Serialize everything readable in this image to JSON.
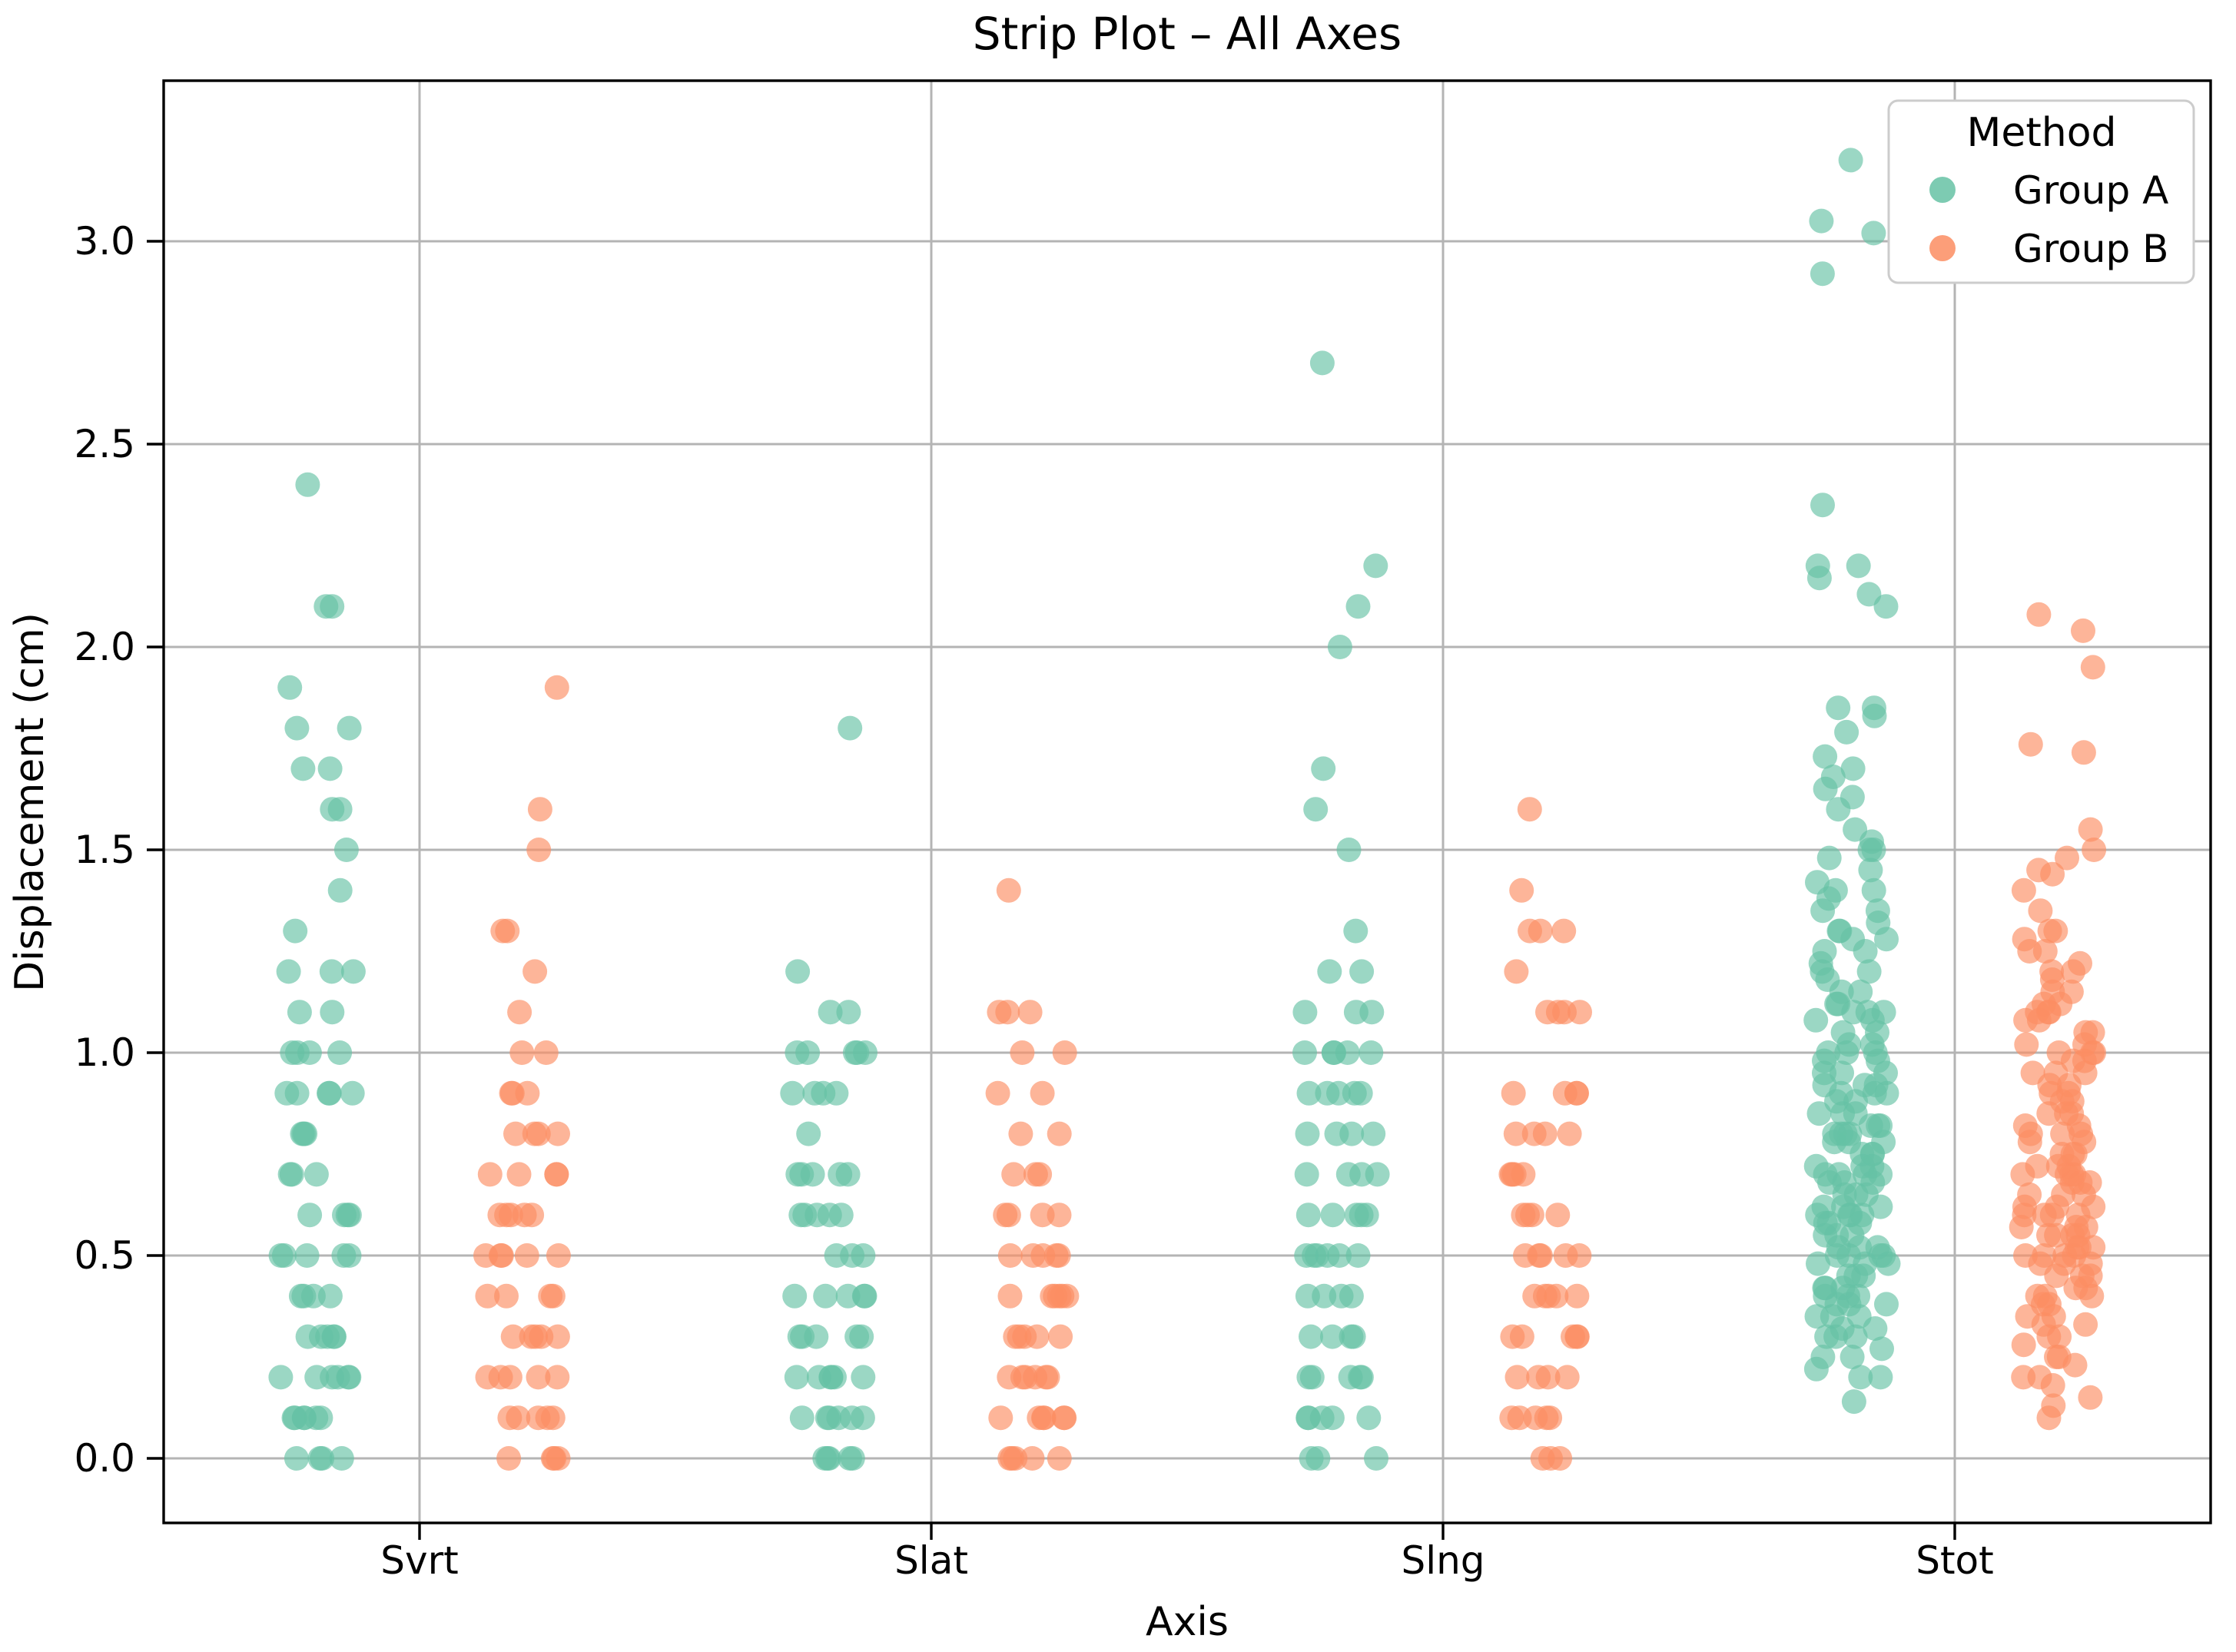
{
  "chart_data": {
    "type": "strip",
    "title": "Strip Plot – All Axes",
    "xlabel": "Axis",
    "ylabel": "Displacement (cm)",
    "categories": [
      "Svrt",
      "Slat",
      "Slng",
      "Stot"
    ],
    "ylim": [
      -0.16,
      3.4
    ],
    "yticks": [
      0.0,
      0.5,
      1.0,
      1.5,
      2.0,
      2.5,
      3.0
    ],
    "grid": true,
    "grid_color": "#b4b4b4",
    "marker_alpha": 0.65,
    "marker_radius_px": 16,
    "dodge_offset": 0.2,
    "jitter_halfwidth": 0.072,
    "legend": {
      "title": "Method",
      "position": "upper right",
      "entries": [
        {
          "label": "Group A",
          "color": "#66c2a5"
        },
        {
          "label": "Group B",
          "color": "#fc8d62"
        }
      ]
    },
    "series": [
      {
        "name": "Group A",
        "color": "#66c2a5",
        "offset": -0.2,
        "value_counts": {
          "Svrt": [
            [
              0.0,
              4
            ],
            [
              0.1,
              6
            ],
            [
              0.2,
              6
            ],
            [
              0.3,
              5
            ],
            [
              0.4,
              4
            ],
            [
              0.5,
              5
            ],
            [
              0.6,
              4
            ],
            [
              0.7,
              3
            ],
            [
              0.8,
              3
            ],
            [
              0.9,
              5
            ],
            [
              1.0,
              4
            ],
            [
              1.1,
              2
            ],
            [
              1.2,
              3
            ],
            [
              1.3,
              1
            ],
            [
              1.4,
              1
            ],
            [
              1.5,
              1
            ],
            [
              1.6,
              2
            ],
            [
              1.7,
              2
            ],
            [
              1.8,
              2
            ],
            [
              1.9,
              1
            ],
            [
              2.1,
              2
            ],
            [
              2.4,
              1
            ]
          ],
          "Slat": [
            [
              0.0,
              5
            ],
            [
              0.1,
              6
            ],
            [
              0.2,
              6
            ],
            [
              0.3,
              5
            ],
            [
              0.4,
              5
            ],
            [
              0.5,
              3
            ],
            [
              0.6,
              5
            ],
            [
              0.7,
              5
            ],
            [
              0.8,
              1
            ],
            [
              0.9,
              4
            ],
            [
              1.0,
              5
            ],
            [
              1.1,
              2
            ],
            [
              1.2,
              1
            ],
            [
              1.8,
              1
            ]
          ],
          "Slng": [
            [
              0.0,
              3
            ],
            [
              0.1,
              5
            ],
            [
              0.2,
              5
            ],
            [
              0.3,
              4
            ],
            [
              0.4,
              4
            ],
            [
              0.5,
              6
            ],
            [
              0.6,
              5
            ],
            [
              0.7,
              4
            ],
            [
              0.8,
              4
            ],
            [
              0.9,
              5
            ],
            [
              1.0,
              5
            ],
            [
              1.1,
              3
            ],
            [
              1.2,
              2
            ],
            [
              1.3,
              1
            ],
            [
              1.5,
              1
            ],
            [
              1.6,
              1
            ],
            [
              1.7,
              1
            ],
            [
              2.0,
              1
            ],
            [
              2.1,
              1
            ],
            [
              2.2,
              1
            ],
            [
              2.7,
              1
            ]
          ],
          "Stot": [
            [
              0.14,
              1
            ],
            [
              0.2,
              2
            ],
            [
              0.22,
              1
            ],
            [
              0.25,
              2
            ],
            [
              0.27,
              1
            ],
            [
              0.3,
              3
            ],
            [
              0.32,
              2
            ],
            [
              0.35,
              3
            ],
            [
              0.38,
              3
            ],
            [
              0.4,
              3
            ],
            [
              0.42,
              3
            ],
            [
              0.45,
              3
            ],
            [
              0.48,
              3
            ],
            [
              0.5,
              4
            ],
            [
              0.52,
              3
            ],
            [
              0.55,
              3
            ],
            [
              0.58,
              3
            ],
            [
              0.6,
              4
            ],
            [
              0.62,
              3
            ],
            [
              0.65,
              3
            ],
            [
              0.68,
              3
            ],
            [
              0.7,
              4
            ],
            [
              0.72,
              3
            ],
            [
              0.75,
              3
            ],
            [
              0.78,
              3
            ],
            [
              0.8,
              4
            ],
            [
              0.82,
              3
            ],
            [
              0.85,
              3
            ],
            [
              0.88,
              2
            ],
            [
              0.9,
              3
            ],
            [
              0.92,
              3
            ],
            [
              0.95,
              3
            ],
            [
              0.98,
              2
            ],
            [
              1.0,
              3
            ],
            [
              1.02,
              2
            ],
            [
              1.05,
              2
            ],
            [
              1.08,
              2
            ],
            [
              1.1,
              3
            ],
            [
              1.12,
              2
            ],
            [
              1.15,
              2
            ],
            [
              1.18,
              1
            ],
            [
              1.2,
              2
            ],
            [
              1.22,
              1
            ],
            [
              1.25,
              2
            ],
            [
              1.28,
              2
            ],
            [
              1.3,
              2
            ],
            [
              1.32,
              1
            ],
            [
              1.35,
              2
            ],
            [
              1.38,
              1
            ],
            [
              1.4,
              2
            ],
            [
              1.42,
              1
            ],
            [
              1.45,
              1
            ],
            [
              1.48,
              1
            ],
            [
              1.5,
              2
            ],
            [
              1.52,
              1
            ],
            [
              1.55,
              1
            ],
            [
              1.6,
              1
            ],
            [
              1.63,
              1
            ],
            [
              1.65,
              1
            ],
            [
              1.68,
              1
            ],
            [
              1.7,
              1
            ],
            [
              1.73,
              1
            ],
            [
              1.79,
              1
            ],
            [
              1.83,
              1
            ],
            [
              1.85,
              2
            ],
            [
              2.1,
              1
            ],
            [
              2.13,
              1
            ],
            [
              2.17,
              1
            ],
            [
              2.2,
              2
            ],
            [
              2.35,
              1
            ],
            [
              2.92,
              1
            ],
            [
              3.02,
              1
            ],
            [
              3.05,
              1
            ],
            [
              3.2,
              1
            ]
          ]
        }
      },
      {
        "name": "Group B",
        "color": "#fc8d62",
        "offset": 0.2,
        "value_counts": {
          "Svrt": [
            [
              0.0,
              4
            ],
            [
              0.1,
              5
            ],
            [
              0.2,
              5
            ],
            [
              0.3,
              5
            ],
            [
              0.4,
              4
            ],
            [
              0.5,
              5
            ],
            [
              0.6,
              5
            ],
            [
              0.7,
              4
            ],
            [
              0.8,
              4
            ],
            [
              0.9,
              3
            ],
            [
              1.0,
              2
            ],
            [
              1.1,
              1
            ],
            [
              1.2,
              1
            ],
            [
              1.3,
              2
            ],
            [
              1.5,
              1
            ],
            [
              1.6,
              1
            ],
            [
              1.9,
              1
            ]
          ],
          "Slat": [
            [
              0.0,
              5
            ],
            [
              0.1,
              6
            ],
            [
              0.2,
              6
            ],
            [
              0.3,
              5
            ],
            [
              0.4,
              6
            ],
            [
              0.5,
              5
            ],
            [
              0.6,
              4
            ],
            [
              0.7,
              3
            ],
            [
              0.8,
              2
            ],
            [
              0.9,
              2
            ],
            [
              1.0,
              2
            ],
            [
              1.1,
              3
            ],
            [
              1.4,
              1
            ]
          ],
          "Slng": [
            [
              0.0,
              3
            ],
            [
              0.1,
              5
            ],
            [
              0.2,
              4
            ],
            [
              0.3,
              5
            ],
            [
              0.4,
              5
            ],
            [
              0.5,
              5
            ],
            [
              0.6,
              4
            ],
            [
              0.7,
              4
            ],
            [
              0.8,
              4
            ],
            [
              0.9,
              4
            ],
            [
              1.1,
              4
            ],
            [
              1.2,
              1
            ],
            [
              1.3,
              3
            ],
            [
              1.4,
              1
            ],
            [
              1.6,
              1
            ]
          ],
          "Stot": [
            [
              0.1,
              1
            ],
            [
              0.13,
              1
            ],
            [
              0.15,
              1
            ],
            [
              0.18,
              1
            ],
            [
              0.2,
              2
            ],
            [
              0.23,
              1
            ],
            [
              0.25,
              2
            ],
            [
              0.28,
              1
            ],
            [
              0.3,
              2
            ],
            [
              0.33,
              2
            ],
            [
              0.35,
              2
            ],
            [
              0.38,
              2
            ],
            [
              0.4,
              3
            ],
            [
              0.42,
              2
            ],
            [
              0.45,
              3
            ],
            [
              0.48,
              3
            ],
            [
              0.5,
              4
            ],
            [
              0.52,
              3
            ],
            [
              0.55,
              4
            ],
            [
              0.57,
              3
            ],
            [
              0.6,
              4
            ],
            [
              0.62,
              3
            ],
            [
              0.65,
              3
            ],
            [
              0.68,
              3
            ],
            [
              0.7,
              4
            ],
            [
              0.72,
              3
            ],
            [
              0.75,
              3
            ],
            [
              0.78,
              2
            ],
            [
              0.8,
              3
            ],
            [
              0.82,
              2
            ],
            [
              0.85,
              3
            ],
            [
              0.88,
              2
            ],
            [
              0.9,
              2
            ],
            [
              0.92,
              2
            ],
            [
              0.95,
              3
            ],
            [
              0.98,
              2
            ],
            [
              1.0,
              3
            ],
            [
              1.02,
              2
            ],
            [
              1.05,
              2
            ],
            [
              1.08,
              2
            ],
            [
              1.1,
              3
            ],
            [
              1.12,
              2
            ],
            [
              1.15,
              2
            ],
            [
              1.18,
              1
            ],
            [
              1.2,
              2
            ],
            [
              1.22,
              1
            ],
            [
              1.25,
              2
            ],
            [
              1.28,
              1
            ],
            [
              1.3,
              2
            ],
            [
              1.35,
              1
            ],
            [
              1.4,
              1
            ],
            [
              1.44,
              1
            ],
            [
              1.45,
              1
            ],
            [
              1.48,
              1
            ],
            [
              1.5,
              1
            ],
            [
              1.55,
              1
            ],
            [
              1.74,
              1
            ],
            [
              1.76,
              1
            ],
            [
              1.95,
              1
            ],
            [
              2.04,
              1
            ],
            [
              2.08,
              1
            ]
          ]
        }
      }
    ]
  }
}
